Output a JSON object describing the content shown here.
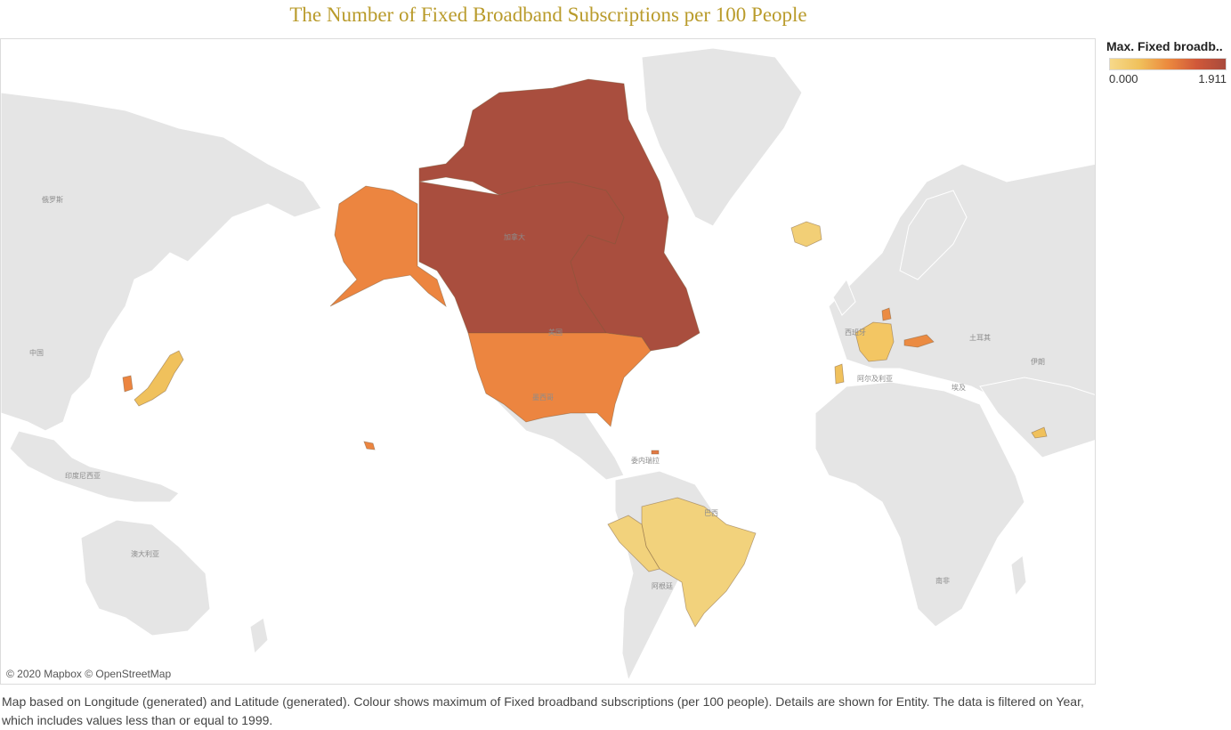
{
  "title": "The Number of Fixed Broadband Subscriptions per 100 People",
  "legend": {
    "title": "Max. Fixed broadb..",
    "min_label": "0.000",
    "max_label": "1.911",
    "min_value": 0.0,
    "max_value": 1.911,
    "color_low": "#f6d98a",
    "color_high": "#a84a3c"
  },
  "attribution": "© 2020 Mapbox © OpenStreetMap",
  "caption": "Map based on Longitude (generated) and Latitude (generated).  Colour shows maximum of Fixed broadband subscriptions (per 100 people).  Details are shown for Entity. The data is filtered on Year, which includes values less than or equal to 1999.",
  "base_map_labels": {
    "russia": "俄罗斯",
    "china": "中国",
    "indonesia": "印度尼西亚",
    "australia": "澳大利亚",
    "canada": "加拿大",
    "usa": "美国",
    "mexico": "墨西哥",
    "venezuela": "委内瑞拉",
    "brazil": "巴西",
    "argentina": "阿根廷",
    "spain": "西班牙",
    "turkey": "土耳其",
    "algeria": "阿尔及利亚",
    "egypt": "埃及",
    "iran": "伊朗",
    "south_africa": "南非"
  },
  "countries": [
    {
      "name": "Canada",
      "color": "#a94e3e"
    },
    {
      "name": "United States",
      "color": "#ec8540"
    },
    {
      "name": "Alaska (United States)",
      "color": "#ec8540"
    },
    {
      "name": "Hawaii (United States)",
      "color": "#ec8540"
    },
    {
      "name": "Brazil",
      "color": "#f2d27c"
    },
    {
      "name": "Peru",
      "color": "#f2d27c"
    },
    {
      "name": "Iceland",
      "color": "#f2cf76"
    },
    {
      "name": "France",
      "color": "#f3c663"
    },
    {
      "name": "Portugal",
      "color": "#f0c15c"
    },
    {
      "name": "Netherlands",
      "color": "#eb8b42"
    },
    {
      "name": "Austria",
      "color": "#eb8b42"
    },
    {
      "name": "Japan",
      "color": "#f0c15c"
    },
    {
      "name": "South Korea",
      "color": "#ec8540"
    },
    {
      "name": "United Arab Emirates",
      "color": "#f0c15c"
    },
    {
      "name": "Puerto Rico",
      "color": "#e27a44"
    }
  ]
}
